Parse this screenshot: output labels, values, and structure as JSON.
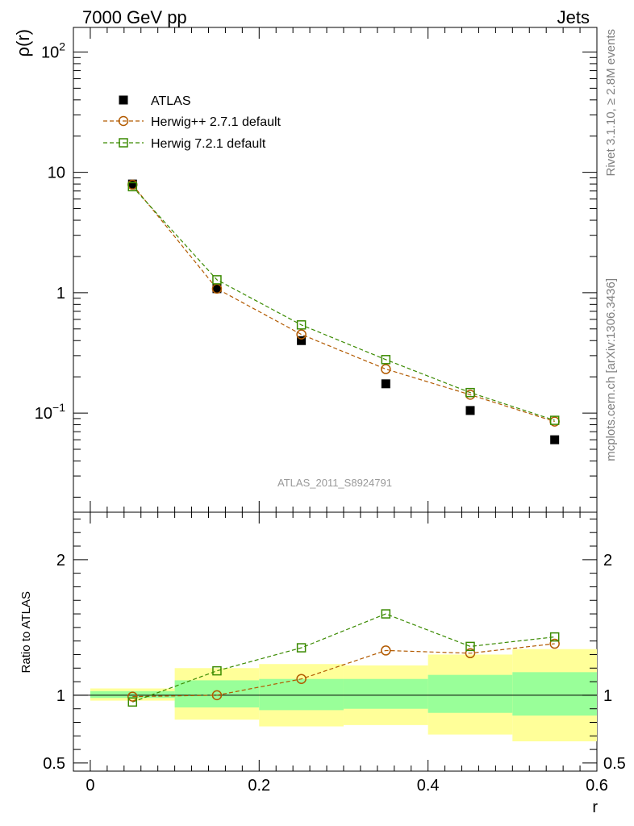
{
  "header": {
    "left_title": "7000 GeV pp",
    "right_title": "Jets",
    "side_note_events": "Rivet 3.1.10, ≥ 2.8M events",
    "side_note_source": "mcplots.cern.ch [arXiv:1306.3436]",
    "analysis_id": "ATLAS_2011_S8924791"
  },
  "chart_data": [
    {
      "type": "scatter",
      "panel": "main",
      "ylabel": "ρ(r)",
      "yscale": "log",
      "ylim": [
        0.015,
        160
      ],
      "xlim": [
        -0.02,
        0.6
      ],
      "yticks": [
        {
          "value": 100,
          "base": "10",
          "exp": "2"
        },
        {
          "value": 10,
          "label": "10"
        },
        {
          "value": 1,
          "label": "1"
        },
        {
          "value": 0.1,
          "base": "10",
          "exp": "−1"
        }
      ],
      "legend_position": "top-left",
      "x": [
        0.05,
        0.15,
        0.25,
        0.35,
        0.45,
        0.55
      ],
      "series": [
        {
          "name": "ATLAS",
          "marker": "filled-square",
          "color": "#000000",
          "values": [
            8.0,
            1.08,
            0.4,
            0.175,
            0.105,
            0.06
          ]
        },
        {
          "name": "Herwig++ 2.7.1 default",
          "marker": "open-circle",
          "color": "#b25a00",
          "line": "dashed",
          "values": [
            7.9,
            1.08,
            0.45,
            0.232,
            0.142,
            0.085
          ]
        },
        {
          "name": "Herwig 7.2.1 default",
          "marker": "open-square",
          "color": "#3a8a00",
          "line": "dashed",
          "values": [
            7.6,
            1.28,
            0.54,
            0.278,
            0.148,
            0.087
          ]
        }
      ]
    },
    {
      "type": "line",
      "panel": "ratio",
      "ylabel": "Ratio to ATLAS",
      "xlabel": "r",
      "ylim": [
        0.44,
        2.35
      ],
      "xlim": [
        -0.02,
        0.6
      ],
      "xticks": [
        {
          "value": 0,
          "label": "0"
        },
        {
          "value": 0.2,
          "label": "0.2"
        },
        {
          "value": 0.4,
          "label": "0.4"
        },
        {
          "value": 0.6,
          "label": "0.6"
        }
      ],
      "yticks": [
        {
          "value": 0.5,
          "label": "0.5"
        },
        {
          "value": 1,
          "label": "1"
        },
        {
          "value": 2,
          "label": "2"
        }
      ],
      "reference_line": 1,
      "bands": [
        {
          "x0": 0.0,
          "x1": 0.1,
          "outer": [
            0.96,
            1.05
          ],
          "inner": [
            0.98,
            1.03
          ]
        },
        {
          "x0": 0.1,
          "x1": 0.2,
          "outer": [
            0.82,
            1.2
          ],
          "inner": [
            0.91,
            1.11
          ]
        },
        {
          "x0": 0.2,
          "x1": 0.3,
          "outer": [
            0.77,
            1.23
          ],
          "inner": [
            0.89,
            1.12
          ]
        },
        {
          "x0": 0.3,
          "x1": 0.4,
          "outer": [
            0.78,
            1.22
          ],
          "inner": [
            0.9,
            1.12
          ]
        },
        {
          "x0": 0.4,
          "x1": 0.5,
          "outer": [
            0.71,
            1.3
          ],
          "inner": [
            0.87,
            1.15
          ]
        },
        {
          "x0": 0.5,
          "x1": 0.6,
          "outer": [
            0.66,
            1.34
          ],
          "inner": [
            0.85,
            1.17
          ]
        }
      ],
      "x": [
        0.05,
        0.15,
        0.25,
        0.35,
        0.45,
        0.55
      ],
      "series": [
        {
          "name": "Herwig++ 2.7.1 default",
          "marker": "open-circle",
          "color": "#b25a00",
          "line": "dashed",
          "values": [
            0.99,
            1.0,
            1.12,
            1.33,
            1.31,
            1.38
          ]
        },
        {
          "name": "Herwig 7.2.1 default",
          "marker": "open-square",
          "color": "#3a8a00",
          "line": "dashed",
          "values": [
            0.95,
            1.18,
            1.35,
            1.6,
            1.36,
            1.43
          ]
        }
      ]
    }
  ],
  "colors": {
    "outer_band": "#ffff99",
    "inner_band": "#99ff99",
    "axis": "#000000",
    "side_text": "#808080"
  }
}
